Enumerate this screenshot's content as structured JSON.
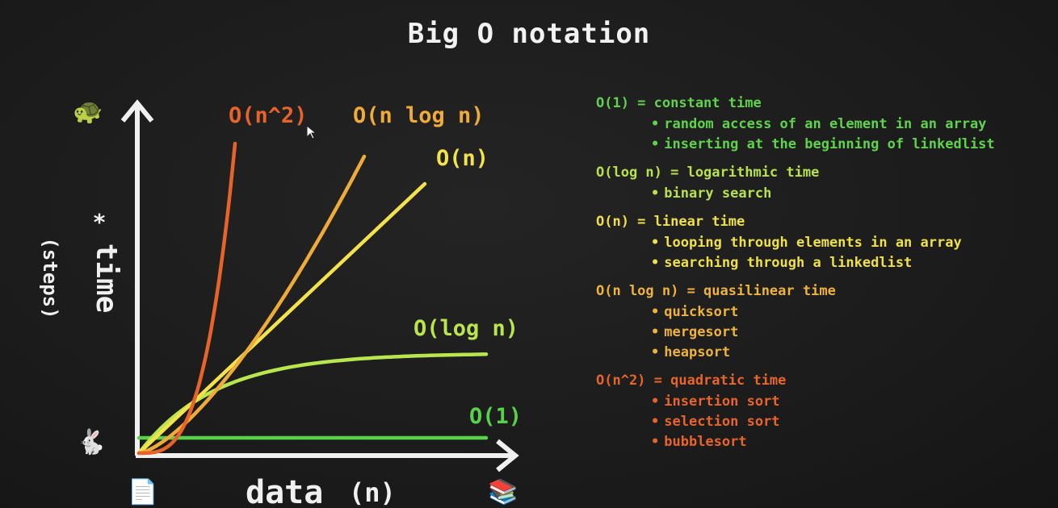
{
  "title": "Big O notation",
  "chart_data": {
    "type": "line",
    "title": "Big O notation",
    "xlabel": "data",
    "xlabel_suffix": "(n)",
    "ylabel": "time",
    "ylabel_mark": "*",
    "ylabel_sub": "(steps)",
    "grid": false,
    "legend": "right",
    "series": [
      {
        "name": "O(n^2)",
        "color": "#e8632a"
      },
      {
        "name": "O(n log n)",
        "color": "#efab3a"
      },
      {
        "name": "O(n)",
        "color": "#f3e24c"
      },
      {
        "name": "O(log n)",
        "color": "#b9e64e"
      },
      {
        "name": "O(1)",
        "color": "#58d24a"
      }
    ]
  },
  "legend": [
    {
      "heading": "O(1) = constant time",
      "color": "#5fd34b",
      "items": [
        "random access of an element in an array",
        "inserting at the beginning of linkedlist"
      ]
    },
    {
      "heading": "O(log n) = logarithmic time",
      "color": "#b7e14f",
      "items": [
        "binary search"
      ]
    },
    {
      "heading": "O(n) = linear time",
      "color": "#efe04a",
      "items": [
        "looping through elements in an array",
        "searching through a linkedlist"
      ]
    },
    {
      "heading": "O(n log n) = quasilinear time",
      "color": "#eeb23d",
      "items": [
        "quicksort",
        "mergesort",
        "heapsort"
      ]
    },
    {
      "heading": "O(n^2) = quadratic time",
      "color": "#e8642a",
      "items": [
        "insertion sort",
        "selection sort",
        "bubblesort"
      ]
    }
  ],
  "icons": {
    "slow": {
      "name": "turtle-icon",
      "glyph": "🐢"
    },
    "fast": {
      "name": "rabbit-icon",
      "glyph": "🐇"
    },
    "few_data": {
      "name": "page-icon",
      "glyph": "📄"
    },
    "many_data": {
      "name": "books-icon",
      "glyph": "📚"
    }
  }
}
